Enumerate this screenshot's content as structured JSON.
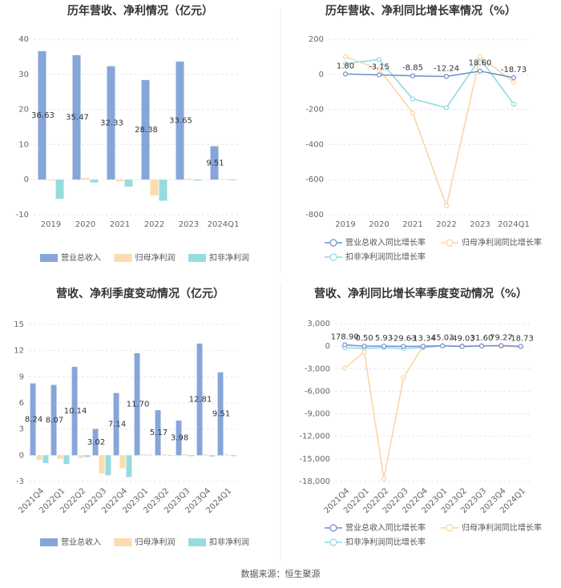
{
  "chart_data": [
    {
      "type": "bar",
      "title": "历年营收、净利情况（亿元）",
      "categories": [
        "2019",
        "2020",
        "2021",
        "2022",
        "2023",
        "2024Q1"
      ],
      "series": [
        {
          "name": "营业总收入",
          "color": "#86a6d9",
          "values": [
            36.63,
            35.47,
            32.33,
            28.38,
            33.65,
            9.51
          ],
          "value_labels": [
            "36.63",
            "35.47",
            "32.33",
            "28.38",
            "33.65",
            "9.51"
          ]
        },
        {
          "name": "归母净利润",
          "color": "#fbdcae",
          "values": [
            -0.3,
            0.5,
            -0.5,
            -4.5,
            0.3,
            0.1
          ]
        },
        {
          "name": "扣非净利润",
          "color": "#96dcdf",
          "values": [
            -5.5,
            -0.8,
            -2.0,
            -6.0,
            -0.3,
            -0.2
          ]
        }
      ],
      "ylim": [
        -10,
        40
      ],
      "yticks": [
        -10,
        0,
        10,
        20,
        30,
        40
      ],
      "grid": true
    },
    {
      "type": "line",
      "title": "历年营收、净利同比增长率情况（%）",
      "categories": [
        "2019",
        "2020",
        "2021",
        "2022",
        "2023",
        "2024Q1"
      ],
      "series": [
        {
          "name": "营业总收入同比增长率",
          "color": "#6f8fd0",
          "values": [
            1.8,
            -3.15,
            -8.85,
            -12.24,
            18.6,
            -18.73
          ],
          "value_labels": [
            "1.80",
            "-3.15",
            "-8.85",
            "-12.24",
            "18.60",
            "-18.73"
          ]
        },
        {
          "name": "归母净利润同比增长率",
          "color": "#fbd3a0",
          "values": [
            100,
            30,
            -220,
            -750,
            100,
            -45
          ]
        },
        {
          "name": "扣非净利润同比增长率",
          "color": "#8ad9df",
          "values": [
            60,
            85,
            -140,
            -190,
            90,
            -170
          ]
        }
      ],
      "ylim": [
        -800,
        200
      ],
      "yticks": [
        -800,
        -600,
        -400,
        -200,
        0,
        200
      ],
      "grid": true
    },
    {
      "type": "bar",
      "title": "营收、净利季度变动情况（亿元）",
      "categories": [
        "2021Q4",
        "2022Q1",
        "2022Q2",
        "2022Q3",
        "2022Q4",
        "2023Q1",
        "2023Q2",
        "2023Q3",
        "2023Q4",
        "2024Q1"
      ],
      "series": [
        {
          "name": "营业总收入",
          "color": "#86a6d9",
          "values": [
            8.24,
            8.07,
            10.14,
            3.02,
            7.14,
            11.7,
            5.17,
            3.98,
            12.81,
            9.51
          ],
          "value_labels": [
            "8.24",
            "8.07",
            "10.14",
            "3.02",
            "7.14",
            "11.70",
            "5.17",
            "3.98",
            "12.81",
            "9.51"
          ]
        },
        {
          "name": "归母净利润",
          "color": "#fbdcae",
          "values": [
            -0.5,
            -0.4,
            -0.3,
            -2.1,
            -1.5,
            0.1,
            0.1,
            0.1,
            0.1,
            0.1
          ]
        },
        {
          "name": "扣非净利润",
          "color": "#96dcdf",
          "values": [
            -0.9,
            -1.0,
            -0.2,
            -2.3,
            -2.5,
            0.05,
            -0.05,
            -0.1,
            -0.15,
            -0.1
          ]
        }
      ],
      "ylim": [
        -3,
        15
      ],
      "yticks": [
        -3,
        0,
        3,
        6,
        9,
        12,
        15
      ],
      "grid": true
    },
    {
      "type": "line",
      "title": "营收、净利同比增长率季度变动情况（%）",
      "categories": [
        "2021Q4",
        "2022Q1",
        "2022Q2",
        "2022Q3",
        "2022Q4",
        "2023Q1",
        "2023Q2",
        "2023Q3",
        "2023Q4",
        "2024Q1"
      ],
      "series": [
        {
          "name": "营业总收入同比增长率",
          "color": "#6f8fd0",
          "values": [
            178.9,
            0.5,
            5.93,
            -29.63,
            -13.34,
            45.03,
            -49.03,
            31.6,
            79.27,
            -18.73
          ],
          "value_labels": [
            "178.90",
            "0.50",
            "5.93",
            "-29.63",
            "-13.34",
            "45.03",
            "-49.03",
            "31.60",
            "79.27",
            "-18.73"
          ]
        },
        {
          "name": "归母净利润同比增长率",
          "color": "#fbd3a0",
          "values": [
            -2900,
            -800,
            -17600,
            -4200,
            0,
            50,
            50,
            50,
            0,
            -100
          ]
        },
        {
          "name": "扣非净利润同比增长率",
          "color": "#8ad9df",
          "values": [
            -200,
            -300,
            -200,
            -300,
            -200,
            50,
            50,
            50,
            50,
            -100
          ]
        }
      ],
      "ylim": [
        -18000,
        3000
      ],
      "yticks": [
        {
          "value": -18000,
          "label": "-18,000"
        },
        {
          "value": -15000,
          "label": "-15,000"
        },
        {
          "value": -12000,
          "label": "-12,000"
        },
        {
          "value": -9000,
          "label": "-9,000"
        },
        {
          "value": -6000,
          "label": "-6,000"
        },
        {
          "value": -3000,
          "label": "-3,000"
        },
        0,
        {
          "value": 3000,
          "label": "3,000"
        }
      ],
      "grid": true
    }
  ],
  "source": "数据来源：恒生聚源"
}
